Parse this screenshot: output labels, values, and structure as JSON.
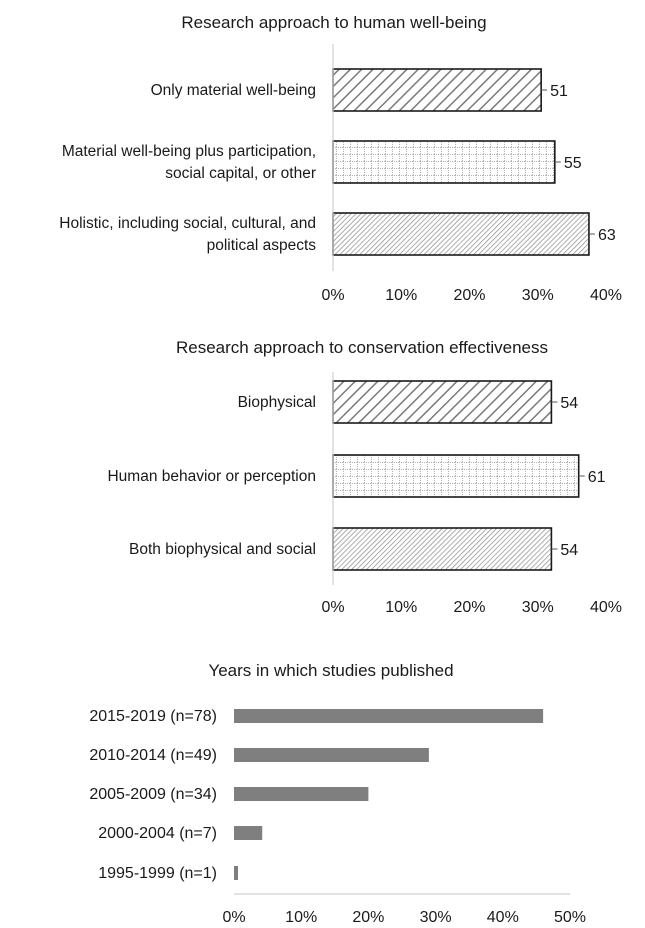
{
  "chart_data": [
    {
      "type": "bar",
      "orientation": "horizontal",
      "title": "Research approach to human well-being",
      "categories": [
        [
          "Only material well-being"
        ],
        [
          "Material well-being plus participation,",
          "social capital, or other"
        ],
        [
          "Holistic, including social, cultural, and",
          "political aspects"
        ]
      ],
      "values": [
        0.305,
        0.325,
        0.375
      ],
      "data_labels": [
        "51",
        "55",
        "63"
      ],
      "patterns": [
        "diagonal",
        "grid",
        "fine-diagonal"
      ],
      "xlim": [
        0,
        0.4
      ],
      "xticks": [
        "0%",
        "10%",
        "20%",
        "30%",
        "40%"
      ],
      "grid": false
    },
    {
      "type": "bar",
      "orientation": "horizontal",
      "title": "Research approach to conservation effectiveness",
      "categories": [
        [
          "Biophysical"
        ],
        [
          "Human behavior or perception"
        ],
        [
          "Both biophysical and social"
        ]
      ],
      "values": [
        0.32,
        0.36,
        0.32
      ],
      "data_labels": [
        "54",
        "61",
        "54"
      ],
      "patterns": [
        "diagonal",
        "grid",
        "fine-diagonal"
      ],
      "xlim": [
        0,
        0.4
      ],
      "xticks": [
        "0%",
        "10%",
        "20%",
        "30%",
        "40%"
      ],
      "grid": false
    },
    {
      "type": "bar",
      "orientation": "horizontal",
      "title": "Years in which studies published",
      "categories": [
        [
          "2015-2019 (n=78)"
        ],
        [
          "2010-2014 (n=49)"
        ],
        [
          "2005-2009 (n=34)"
        ],
        [
          "2000-2004 (n=7)"
        ],
        [
          "1995-1999 (n=1)"
        ]
      ],
      "values": [
        0.46,
        0.29,
        0.2,
        0.042,
        0.006
      ],
      "bar_color": "#7f7f7f",
      "xlim": [
        0,
        0.5
      ],
      "xticks": [
        "0%",
        "10%",
        "20%",
        "30%",
        "40%",
        "50%"
      ],
      "grid": false
    }
  ]
}
